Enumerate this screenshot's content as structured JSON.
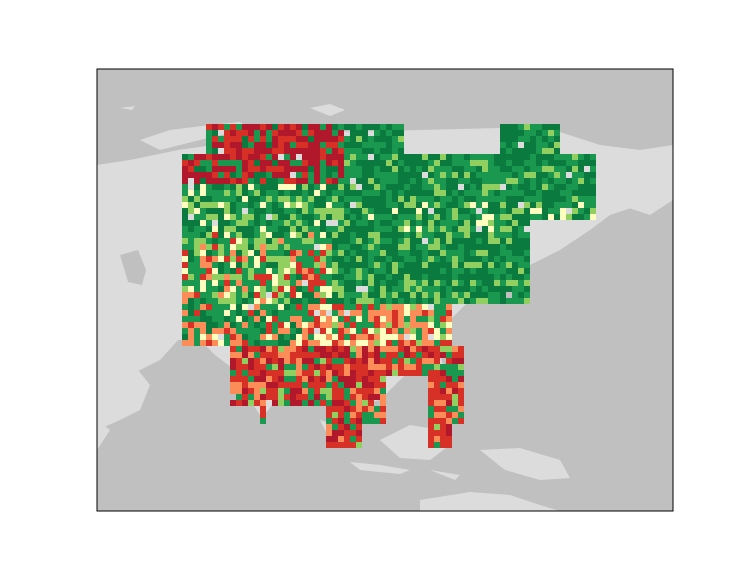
{
  "figure": {
    "description_hidden": false,
    "map_type": "gridded land-cover / index raster over Asia",
    "colors": {
      "ocean": "#c0c0c0",
      "land": "#dcdcdc",
      "frame": "#000000",
      "dark_green": "#0b7a3e",
      "green": "#1a9850",
      "light_green": "#91cf60",
      "pale_yellow": "#ffffbf",
      "orange": "#fc8d59",
      "red": "#d73027",
      "dark_red": "#b2182b"
    },
    "palette_order": [
      "dark_red",
      "red",
      "orange",
      "pale_yellow",
      "light_green",
      "green",
      "dark_green"
    ]
  }
}
